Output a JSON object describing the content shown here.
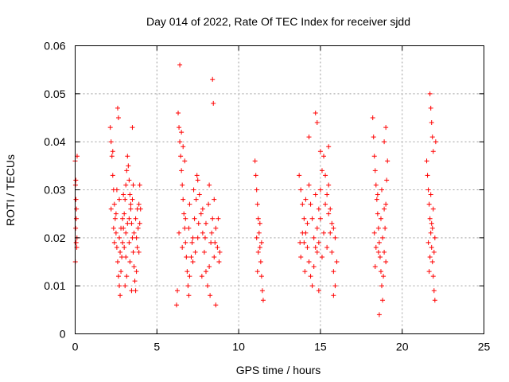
{
  "chart_data": {
    "type": "scatter",
    "title": "Day 014 of 2022, Rate Of TEC Index for receiver sjdd",
    "xlabel": "GPS time / hours",
    "ylabel": "ROTI / TECUs",
    "xlim": [
      0,
      25
    ],
    "ylim": [
      0,
      0.06
    ],
    "x_ticks": [
      0,
      5,
      10,
      15,
      20,
      25
    ],
    "x_tick_labels": [
      "0",
      "5",
      "10",
      "15",
      "20",
      "25"
    ],
    "y_ticks": [
      0,
      0.01,
      0.02,
      0.03,
      0.04,
      0.05,
      0.06
    ],
    "y_tick_labels": [
      "0",
      "0.01",
      "0.02",
      "0.03",
      "0.04",
      "0.05",
      "0.06"
    ],
    "grid": true,
    "marker": "plus",
    "color": "#ff0000",
    "series": [
      {
        "name": "ROTI",
        "points": [
          [
            0.0,
            0.036
          ],
          [
            0.02,
            0.031
          ],
          [
            0.05,
            0.028
          ],
          [
            0.08,
            0.026
          ],
          [
            0.03,
            0.022
          ],
          [
            0.06,
            0.019
          ],
          [
            0.1,
            0.018
          ],
          [
            0.04,
            0.032
          ],
          [
            0.12,
            0.037
          ],
          [
            0.01,
            0.015
          ],
          [
            0.07,
            0.024
          ],
          [
            0.11,
            0.02
          ],
          [
            2.15,
            0.043
          ],
          [
            2.2,
            0.04
          ],
          [
            2.25,
            0.037
          ],
          [
            2.3,
            0.033
          ],
          [
            2.35,
            0.03
          ],
          [
            2.4,
            0.027
          ],
          [
            2.45,
            0.024
          ],
          [
            2.5,
            0.021
          ],
          [
            2.55,
            0.018
          ],
          [
            2.6,
            0.015
          ],
          [
            2.65,
            0.012
          ],
          [
            2.7,
            0.01
          ],
          [
            2.75,
            0.008
          ],
          [
            2.8,
            0.013
          ],
          [
            2.85,
            0.016
          ],
          [
            2.9,
            0.019
          ],
          [
            2.95,
            0.022
          ],
          [
            3.0,
            0.025
          ],
          [
            3.05,
            0.028
          ],
          [
            3.1,
            0.031
          ],
          [
            3.15,
            0.034
          ],
          [
            3.2,
            0.037
          ],
          [
            3.25,
            0.035
          ],
          [
            3.3,
            0.032
          ],
          [
            3.35,
            0.029
          ],
          [
            3.4,
            0.026
          ],
          [
            3.45,
            0.023
          ],
          [
            3.5,
            0.02
          ],
          [
            3.55,
            0.017
          ],
          [
            3.6,
            0.014
          ],
          [
            3.65,
            0.011
          ],
          [
            3.7,
            0.009
          ],
          [
            3.75,
            0.013
          ],
          [
            3.8,
            0.018
          ],
          [
            3.85,
            0.022
          ],
          [
            3.9,
            0.027
          ],
          [
            3.95,
            0.031
          ],
          [
            4.0,
            0.026
          ],
          [
            2.6,
            0.047
          ],
          [
            2.65,
            0.045
          ],
          [
            3.5,
            0.043
          ],
          [
            2.3,
            0.038
          ],
          [
            2.7,
            0.028
          ],
          [
            2.9,
            0.024
          ],
          [
            3.1,
            0.021
          ],
          [
            3.3,
            0.019
          ],
          [
            3.7,
            0.024
          ],
          [
            3.9,
            0.017
          ],
          [
            2.4,
            0.019
          ],
          [
            2.8,
            0.022
          ],
          [
            3.0,
            0.018
          ],
          [
            3.2,
            0.023
          ],
          [
            3.4,
            0.027
          ],
          [
            3.6,
            0.021
          ],
          [
            3.8,
            0.026
          ],
          [
            2.5,
            0.025
          ],
          [
            2.7,
            0.02
          ],
          [
            3.1,
            0.016
          ],
          [
            3.3,
            0.024
          ],
          [
            3.5,
            0.028
          ],
          [
            2.2,
            0.026
          ],
          [
            2.35,
            0.022
          ],
          [
            2.55,
            0.03
          ],
          [
            2.75,
            0.017
          ],
          [
            2.95,
            0.029
          ],
          [
            3.15,
            0.012
          ],
          [
            3.35,
            0.015
          ],
          [
            3.55,
            0.031
          ],
          [
            3.75,
            0.02
          ],
          [
            3.95,
            0.023
          ],
          [
            3.05,
            0.01
          ],
          [
            3.45,
            0.009
          ],
          [
            6.3,
            0.046
          ],
          [
            6.35,
            0.043
          ],
          [
            6.4,
            0.04
          ],
          [
            6.45,
            0.037
          ],
          [
            6.5,
            0.034
          ],
          [
            6.55,
            0.031
          ],
          [
            6.6,
            0.028
          ],
          [
            6.65,
            0.025
          ],
          [
            6.7,
            0.022
          ],
          [
            6.75,
            0.019
          ],
          [
            6.8,
            0.016
          ],
          [
            6.85,
            0.013
          ],
          [
            6.9,
            0.01
          ],
          [
            6.95,
            0.008
          ],
          [
            7.0,
            0.012
          ],
          [
            7.1,
            0.016
          ],
          [
            7.2,
            0.02
          ],
          [
            7.3,
            0.024
          ],
          [
            7.4,
            0.028
          ],
          [
            7.5,
            0.032
          ],
          [
            7.6,
            0.029
          ],
          [
            7.7,
            0.025
          ],
          [
            7.8,
            0.021
          ],
          [
            7.9,
            0.017
          ],
          [
            8.0,
            0.013
          ],
          [
            8.1,
            0.01
          ],
          [
            8.2,
            0.014
          ],
          [
            8.3,
            0.019
          ],
          [
            8.4,
            0.024
          ],
          [
            8.5,
            0.028
          ],
          [
            8.6,
            0.022
          ],
          [
            8.7,
            0.018
          ],
          [
            8.8,
            0.015
          ],
          [
            6.2,
            0.006
          ],
          [
            6.25,
            0.009
          ],
          [
            6.4,
            0.056
          ],
          [
            8.4,
            0.053
          ],
          [
            8.45,
            0.048
          ],
          [
            6.5,
            0.042
          ],
          [
            6.6,
            0.039
          ],
          [
            6.7,
            0.036
          ],
          [
            7.0,
            0.027
          ],
          [
            7.2,
            0.015
          ],
          [
            7.5,
            0.02
          ],
          [
            7.8,
            0.026
          ],
          [
            8.0,
            0.023
          ],
          [
            8.2,
            0.031
          ],
          [
            8.5,
            0.016
          ],
          [
            6.35,
            0.021
          ],
          [
            6.55,
            0.018
          ],
          [
            6.75,
            0.024
          ],
          [
            6.95,
            0.022
          ],
          [
            7.15,
            0.019
          ],
          [
            7.35,
            0.017
          ],
          [
            7.55,
            0.023
          ],
          [
            7.75,
            0.012
          ],
          [
            7.95,
            0.02
          ],
          [
            8.15,
            0.027
          ],
          [
            8.35,
            0.021
          ],
          [
            8.55,
            0.019
          ],
          [
            8.75,
            0.024
          ],
          [
            8.85,
            0.017
          ],
          [
            7.45,
            0.033
          ],
          [
            7.25,
            0.03
          ],
          [
            8.25,
            0.008
          ],
          [
            8.6,
            0.006
          ],
          [
            11.0,
            0.036
          ],
          [
            11.05,
            0.033
          ],
          [
            11.1,
            0.03
          ],
          [
            11.15,
            0.027
          ],
          [
            11.2,
            0.024
          ],
          [
            11.25,
            0.021
          ],
          [
            11.3,
            0.018
          ],
          [
            11.35,
            0.015
          ],
          [
            11.4,
            0.012
          ],
          [
            11.45,
            0.009
          ],
          [
            11.5,
            0.007
          ],
          [
            11.1,
            0.02
          ],
          [
            11.2,
            0.017
          ],
          [
            11.3,
            0.023
          ],
          [
            11.4,
            0.019
          ],
          [
            11.15,
            0.013
          ],
          [
            13.7,
            0.033
          ],
          [
            13.8,
            0.03
          ],
          [
            13.9,
            0.027
          ],
          [
            14.0,
            0.024
          ],
          [
            14.1,
            0.021
          ],
          [
            14.2,
            0.018
          ],
          [
            14.3,
            0.015
          ],
          [
            14.4,
            0.012
          ],
          [
            14.5,
            0.01
          ],
          [
            14.6,
            0.014
          ],
          [
            14.7,
            0.018
          ],
          [
            14.8,
            0.022
          ],
          [
            14.9,
            0.026
          ],
          [
            15.0,
            0.03
          ],
          [
            15.1,
            0.034
          ],
          [
            15.2,
            0.037
          ],
          [
            15.3,
            0.033
          ],
          [
            15.4,
            0.029
          ],
          [
            15.5,
            0.025
          ],
          [
            15.6,
            0.021
          ],
          [
            15.7,
            0.017
          ],
          [
            15.8,
            0.013
          ],
          [
            15.9,
            0.01
          ],
          [
            16.0,
            0.015
          ],
          [
            14.7,
            0.046
          ],
          [
            14.8,
            0.044
          ],
          [
            14.3,
            0.041
          ],
          [
            15.0,
            0.038
          ],
          [
            15.5,
            0.039
          ],
          [
            13.8,
            0.016
          ],
          [
            14.0,
            0.019
          ],
          [
            14.2,
            0.023
          ],
          [
            14.4,
            0.027
          ],
          [
            14.6,
            0.02
          ],
          [
            14.8,
            0.017
          ],
          [
            15.0,
            0.024
          ],
          [
            15.2,
            0.021
          ],
          [
            15.4,
            0.018
          ],
          [
            15.6,
            0.026
          ],
          [
            15.8,
            0.022
          ],
          [
            13.9,
            0.021
          ],
          [
            14.1,
            0.028
          ],
          [
            14.3,
            0.031
          ],
          [
            14.5,
            0.024
          ],
          [
            14.7,
            0.029
          ],
          [
            14.9,
            0.019
          ],
          [
            15.1,
            0.016
          ],
          [
            15.3,
            0.027
          ],
          [
            15.5,
            0.031
          ],
          [
            15.7,
            0.023
          ],
          [
            15.9,
            0.02
          ],
          [
            14.9,
            0.009
          ],
          [
            15.8,
            0.008
          ],
          [
            13.75,
            0.019
          ],
          [
            14.05,
            0.013
          ],
          [
            18.2,
            0.045
          ],
          [
            18.25,
            0.041
          ],
          [
            18.3,
            0.037
          ],
          [
            18.35,
            0.034
          ],
          [
            18.4,
            0.031
          ],
          [
            18.45,
            0.028
          ],
          [
            18.5,
            0.025
          ],
          [
            18.55,
            0.022
          ],
          [
            18.6,
            0.019
          ],
          [
            18.65,
            0.016
          ],
          [
            18.7,
            0.013
          ],
          [
            18.75,
            0.01
          ],
          [
            18.8,
            0.007
          ],
          [
            18.85,
            0.012
          ],
          [
            18.9,
            0.017
          ],
          [
            18.95,
            0.022
          ],
          [
            19.0,
            0.027
          ],
          [
            19.05,
            0.032
          ],
          [
            19.1,
            0.036
          ],
          [
            18.6,
            0.004
          ],
          [
            18.9,
            0.04
          ],
          [
            19.0,
            0.043
          ],
          [
            18.3,
            0.021
          ],
          [
            18.4,
            0.018
          ],
          [
            18.5,
            0.029
          ],
          [
            18.7,
            0.024
          ],
          [
            18.8,
            0.02
          ],
          [
            18.9,
            0.026
          ],
          [
            19.0,
            0.015
          ],
          [
            18.35,
            0.014
          ],
          [
            18.55,
            0.017
          ],
          [
            18.75,
            0.03
          ],
          [
            21.5,
            0.036
          ],
          [
            21.55,
            0.033
          ],
          [
            21.6,
            0.03
          ],
          [
            21.65,
            0.027
          ],
          [
            21.7,
            0.024
          ],
          [
            21.75,
            0.021
          ],
          [
            21.8,
            0.018
          ],
          [
            21.85,
            0.015
          ],
          [
            21.9,
            0.012
          ],
          [
            21.95,
            0.009
          ],
          [
            22.0,
            0.007
          ],
          [
            21.7,
            0.05
          ],
          [
            21.75,
            0.047
          ],
          [
            21.8,
            0.044
          ],
          [
            21.85,
            0.041
          ],
          [
            21.9,
            0.038
          ],
          [
            21.6,
            0.019
          ],
          [
            21.7,
            0.016
          ],
          [
            21.8,
            0.023
          ],
          [
            21.9,
            0.026
          ],
          [
            22.0,
            0.02
          ],
          [
            21.65,
            0.013
          ],
          [
            21.75,
            0.029
          ],
          [
            21.85,
            0.022
          ],
          [
            21.95,
            0.017
          ],
          [
            22.05,
            0.04
          ]
        ]
      }
    ]
  }
}
